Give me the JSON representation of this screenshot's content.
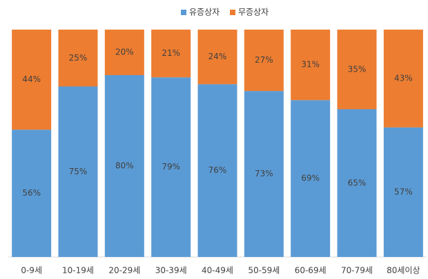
{
  "chart_data": {
    "type": "stacked_bar_100",
    "categories": [
      "0-9세",
      "10-19세",
      "20-29세",
      "30-39세",
      "40-49세",
      "50-59세",
      "60-69세",
      "70-79세",
      "80세이상"
    ],
    "series": [
      {
        "name": "유증상자",
        "color": "#5b9bd5",
        "values": [
          56,
          75,
          80,
          79,
          76,
          73,
          69,
          65,
          57
        ],
        "value_labels": [
          "56%",
          "75%",
          "80%",
          "79%",
          "76%",
          "73%",
          "69%",
          "65%",
          "57%"
        ]
      },
      {
        "name": "무증상자",
        "color": "#ed7d31",
        "values": [
          44,
          25,
          20,
          21,
          24,
          27,
          31,
          35,
          43
        ],
        "value_labels": [
          "44%",
          "25%",
          "20%",
          "21%",
          "24%",
          "27%",
          "31%",
          "35%",
          "43%"
        ]
      }
    ]
  }
}
